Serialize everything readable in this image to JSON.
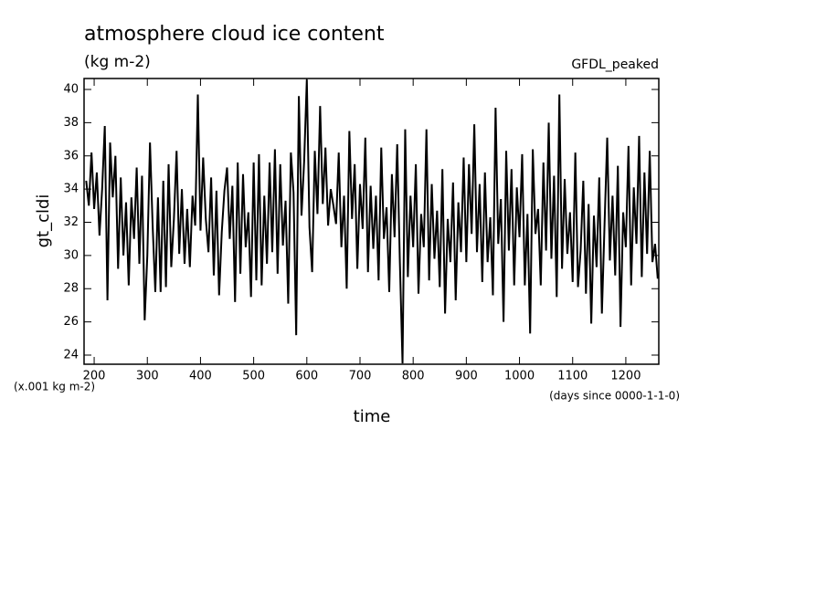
{
  "chart_data": {
    "type": "line",
    "title": "atmosphere cloud ice content",
    "subtitle": "(kg m-2)",
    "annotation": "GFDL_peaked",
    "y_label": "gt_cldi",
    "x_label": "time",
    "y_units": "(x.001 kg m-2)",
    "x_units": "(days since 0000-1-1-0)",
    "xlim": [
      181,
      1262
    ],
    "ylim": [
      23.45,
      40.66
    ],
    "xticks": [
      200,
      300,
      400,
      500,
      600,
      700,
      800,
      900,
      1000,
      1100,
      1200
    ],
    "yticks": [
      24,
      26,
      28,
      30,
      32,
      34,
      36,
      38,
      40
    ],
    "color": "#000000",
    "x": [
      185,
      190,
      195,
      200,
      205,
      210,
      215,
      220,
      225,
      230,
      235,
      240,
      245,
      250,
      255,
      260,
      265,
      270,
      275,
      280,
      285,
      290,
      295,
      300,
      305,
      310,
      315,
      320,
      325,
      330,
      335,
      340,
      345,
      350,
      355,
      360,
      365,
      370,
      375,
      380,
      385,
      390,
      395,
      400,
      405,
      410,
      415,
      420,
      425,
      430,
      435,
      440,
      445,
      450,
      455,
      460,
      465,
      470,
      475,
      480,
      485,
      490,
      495,
      500,
      505,
      510,
      515,
      520,
      525,
      530,
      535,
      540,
      545,
      550,
      555,
      560,
      565,
      570,
      575,
      580,
      585,
      590,
      595,
      600,
      605,
      610,
      615,
      620,
      625,
      630,
      635,
      640,
      645,
      650,
      655,
      660,
      665,
      670,
      675,
      680,
      685,
      690,
      695,
      700,
      705,
      710,
      715,
      720,
      725,
      730,
      735,
      740,
      745,
      750,
      755,
      760,
      765,
      770,
      775,
      780,
      785,
      790,
      795,
      800,
      805,
      810,
      815,
      820,
      825,
      830,
      835,
      840,
      845,
      850,
      855,
      860,
      865,
      870,
      875,
      880,
      885,
      890,
      895,
      900,
      905,
      910,
      915,
      920,
      925,
      930,
      935,
      940,
      945,
      950,
      955,
      960,
      965,
      970,
      975,
      980,
      985,
      990,
      995,
      1000,
      1005,
      1010,
      1015,
      1020,
      1025,
      1030,
      1035,
      1040,
      1045,
      1050,
      1055,
      1060,
      1065,
      1070,
      1075,
      1080,
      1085,
      1090,
      1095,
      1100,
      1105,
      1110,
      1115,
      1120,
      1125,
      1130,
      1135,
      1140,
      1145,
      1150,
      1155,
      1160,
      1165,
      1170,
      1175,
      1180,
      1185,
      1190,
      1195,
      1200,
      1205,
      1210,
      1215,
      1220,
      1225,
      1230,
      1235,
      1240,
      1245,
      1250,
      1255,
      1260
    ],
    "values": [
      34.5,
      33,
      36.2,
      32.8,
      35,
      31.2,
      34,
      37.8,
      27.3,
      36.8,
      33.5,
      36,
      29.2,
      34.7,
      30,
      33.2,
      28.2,
      33.5,
      31,
      35.3,
      29.5,
      34.8,
      26.1,
      30,
      36.8,
      31.8,
      27.8,
      33.5,
      27.8,
      34.5,
      28.1,
      35.5,
      29.3,
      32.2,
      36.3,
      30.1,
      34,
      29.5,
      32.8,
      29.3,
      33.6,
      31.8,
      39.7,
      31.5,
      35.9,
      32.2,
      30.2,
      34.7,
      28.8,
      33.9,
      27.6,
      31.4,
      33.9,
      35.3,
      31,
      34.2,
      27.2,
      35.6,
      28.9,
      34.9,
      30.5,
      32.6,
      27.5,
      35.6,
      28.5,
      36.1,
      28.2,
      33.6,
      29.5,
      35.6,
      30.2,
      36.4,
      28.9,
      35.5,
      30.6,
      33.3,
      27.1,
      36.2,
      33.8,
      25.2,
      39.6,
      32.4,
      35.7,
      40.6,
      31.7,
      29,
      36.3,
      32.5,
      39,
      33.1,
      36.5,
      31.8,
      34,
      33,
      31.9,
      36.2,
      30.5,
      33.6,
      28,
      37.5,
      32.2,
      35.5,
      29.2,
      34.3,
      31.6,
      37.1,
      29,
      34.2,
      30.4,
      33.6,
      28.5,
      36.5,
      31,
      32.9,
      27.8,
      34.9,
      31.1,
      36.7,
      29.6,
      23.5,
      37.6,
      28.7,
      33.6,
      30.5,
      35.5,
      27.7,
      32.5,
      30.5,
      37.6,
      28.5,
      34.3,
      29.8,
      32.7,
      28.1,
      35.2,
      26.5,
      32.2,
      29.6,
      34.4,
      27.3,
      33.2,
      30.2,
      35.9,
      29.6,
      35.5,
      31.3,
      37.9,
      30.2,
      34.3,
      28.4,
      35,
      29.6,
      32.3,
      27.6,
      38.9,
      30.7,
      33.4,
      26,
      36.3,
      30.3,
      35.2,
      28.2,
      34.1,
      31.1,
      36.1,
      28.2,
      32.5,
      25.3,
      36.4,
      31.3,
      32.8,
      28.2,
      35.6,
      30.3,
      38,
      29.8,
      34.8,
      27.5,
      39.7,
      29.2,
      34.6,
      30.1,
      32.6,
      28.4,
      36.2,
      28.1,
      30.3,
      34.5,
      27.7,
      33.1,
      25.9,
      32.4,
      29.3,
      34.7,
      26.5,
      31.9,
      37.1,
      29.7,
      33.6,
      28.8,
      35.4,
      25.7,
      32.6,
      30.5,
      36.6,
      28.2,
      34.1,
      30.7,
      37.2,
      28.7,
      35,
      30.1,
      36.3,
      29.6,
      30.7,
      28.6
    ]
  }
}
